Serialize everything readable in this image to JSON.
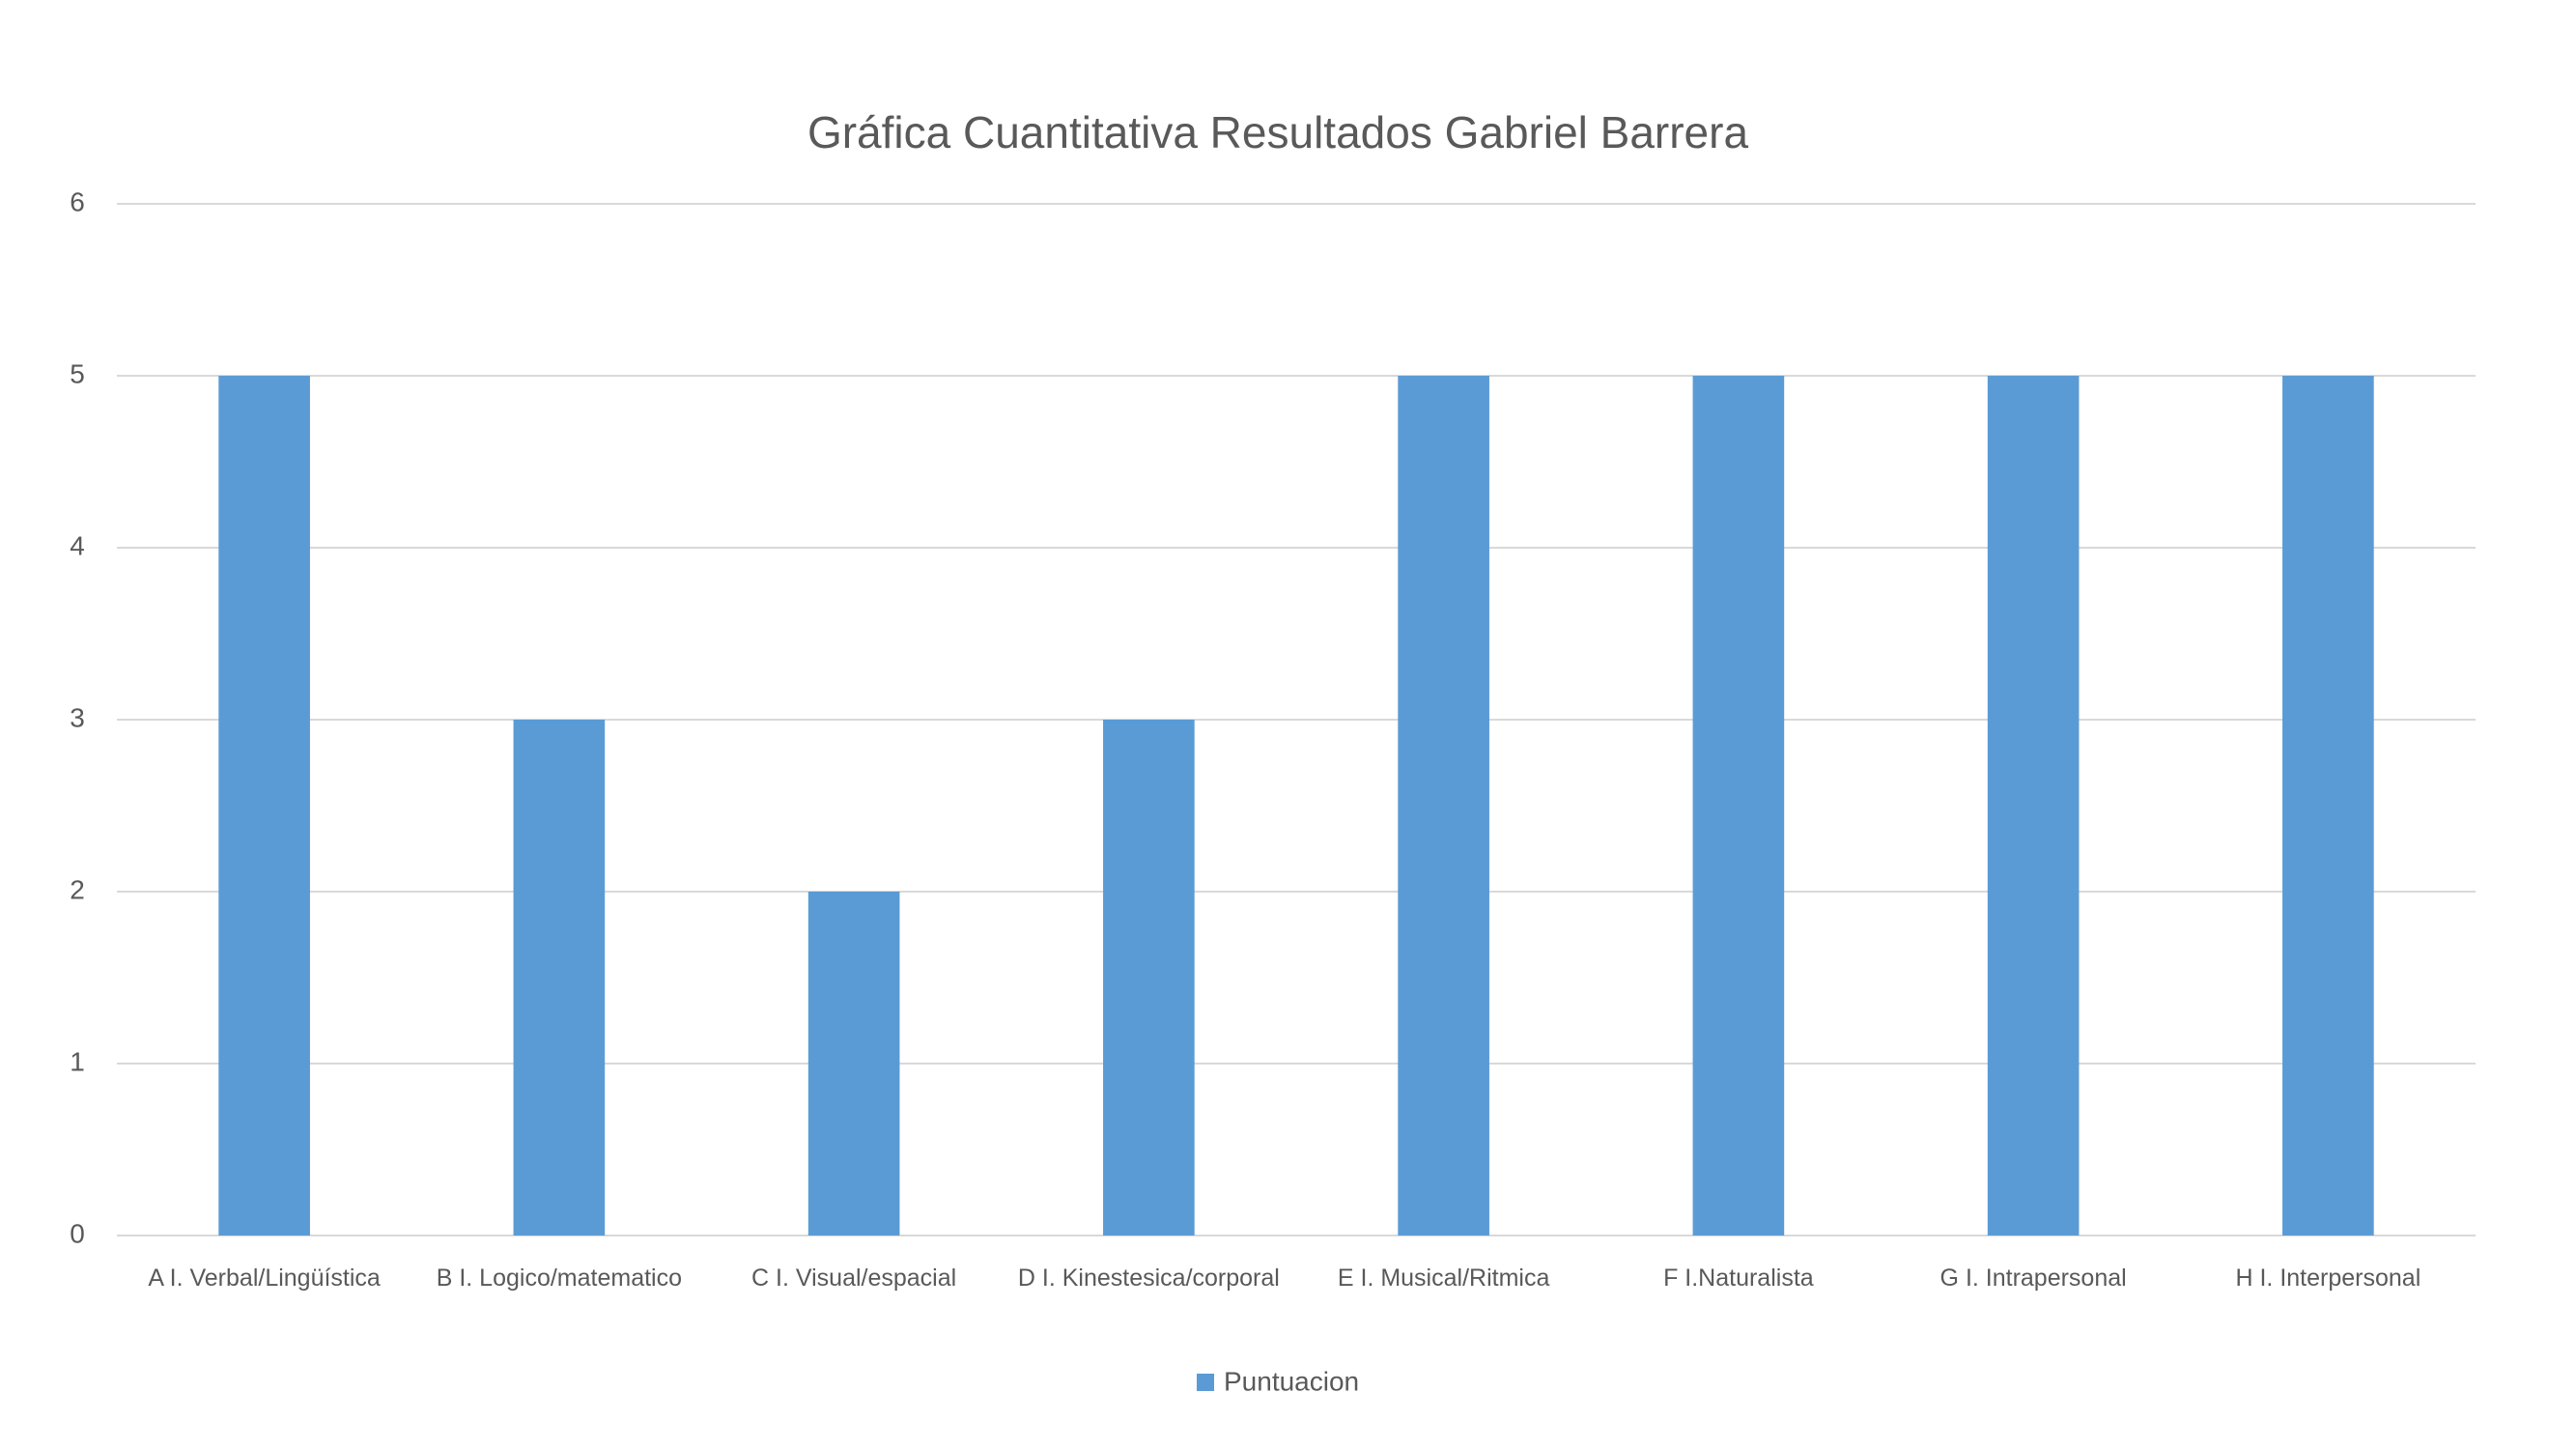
{
  "chart_data": {
    "type": "bar",
    "title": "Gráfica Cuantitativa Resultados Gabriel Barrera",
    "categories": [
      "A I. Verbal/Lingüística",
      "B I. Logico/matematico",
      "C I. Visual/espacial",
      "D I. Kinestesica/corporal",
      "E I. Musical/Ritmica",
      "F I.Naturalista",
      "G I. Intrapersonal",
      "H I. Interpersonal"
    ],
    "series": [
      {
        "name": "Puntuacion",
        "color": "#5b9bd5",
        "values": [
          5,
          3,
          2,
          3,
          5,
          5,
          5,
          5
        ]
      }
    ],
    "ylim": [
      0,
      6
    ],
    "yticks": [
      0,
      1,
      2,
      3,
      4,
      5,
      6
    ],
    "grid": true,
    "legend": "bottom"
  }
}
